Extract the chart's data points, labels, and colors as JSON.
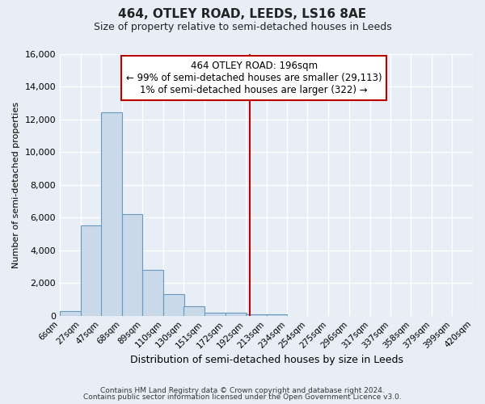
{
  "title": "464, OTLEY ROAD, LEEDS, LS16 8AE",
  "subtitle": "Size of property relative to semi-detached houses in Leeds",
  "xlabel": "Distribution of semi-detached houses by size in Leeds",
  "ylabel": "Number of semi-detached properties",
  "bar_left_edges": [
    6,
    27,
    47,
    68,
    89,
    110,
    130,
    151,
    172,
    192,
    213,
    234,
    254,
    275,
    296,
    317,
    337,
    358,
    379,
    399
  ],
  "bar_heights": [
    300,
    5500,
    12400,
    6200,
    2800,
    1300,
    600,
    200,
    200,
    100,
    100,
    0,
    0,
    0,
    0,
    0,
    0,
    0,
    0,
    0
  ],
  "bin_width": 21,
  "bar_color": "#c9d9ea",
  "bar_edge_color": "#6699bb",
  "tick_labels": [
    "6sqm",
    "27sqm",
    "47sqm",
    "68sqm",
    "89sqm",
    "110sqm",
    "130sqm",
    "151sqm",
    "172sqm",
    "192sqm",
    "213sqm",
    "234sqm",
    "254sqm",
    "275sqm",
    "296sqm",
    "317sqm",
    "337sqm",
    "358sqm",
    "379sqm",
    "399sqm",
    "420sqm"
  ],
  "tick_positions": [
    6,
    27,
    47,
    68,
    89,
    110,
    130,
    151,
    172,
    192,
    213,
    234,
    254,
    275,
    296,
    317,
    337,
    358,
    379,
    399,
    420
  ],
  "ylim": [
    0,
    16000
  ],
  "yticks": [
    0,
    2000,
    4000,
    6000,
    8000,
    10000,
    12000,
    14000,
    16000
  ],
  "xlim": [
    6,
    420
  ],
  "vline_x": 196,
  "vline_color": "#bb0000",
  "annotation_title": "464 OTLEY ROAD: 196sqm",
  "annotation_line1": "← 99% of semi-detached houses are smaller (29,113)",
  "annotation_line2": "1% of semi-detached houses are larger (322) →",
  "annotation_box_color": "#ffffff",
  "annotation_box_edge": "#bb0000",
  "footer1": "Contains HM Land Registry data © Crown copyright and database right 2024.",
  "footer2": "Contains public sector information licensed under the Open Government Licence v3.0.",
  "background_color": "#e8eef5",
  "grid_color": "#ffffff"
}
